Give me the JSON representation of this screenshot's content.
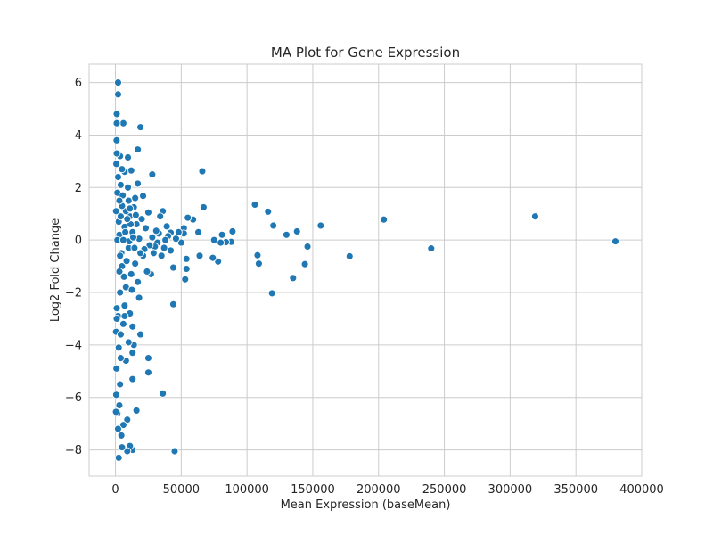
{
  "chart_data": {
    "type": "scatter",
    "title": "MA Plot for Gene Expression",
    "xlabel": "Mean Expression (baseMean)",
    "ylabel": "Log2 Fold Change",
    "xlim": [
      -20000,
      400000
    ],
    "ylim": [
      -9,
      6.7
    ],
    "xticks": [
      0,
      50000,
      100000,
      150000,
      200000,
      250000,
      300000,
      350000,
      400000
    ],
    "xtick_labels": [
      "0",
      "50000",
      "100000",
      "150000",
      "200000",
      "250000",
      "300000",
      "350000",
      "400000"
    ],
    "yticks": [
      -8,
      -6,
      -4,
      -2,
      0,
      2,
      4,
      6
    ],
    "ytick_labels": [
      "−8",
      "−6",
      "−4",
      "−2",
      "0",
      "2",
      "4",
      "6"
    ],
    "grid": true,
    "marker_color": "#1f77b4",
    "series": [
      {
        "points": [
          [
            380000,
            -0.05
          ],
          [
            319000,
            0.9
          ],
          [
            240000,
            -0.32
          ],
          [
            204000,
            0.78
          ],
          [
            178000,
            -0.62
          ],
          [
            156000,
            0.55
          ],
          [
            146000,
            -0.25
          ],
          [
            144000,
            -0.92
          ],
          [
            138000,
            0.33
          ],
          [
            135000,
            -1.45
          ],
          [
            130000,
            0.2
          ],
          [
            119000,
            -2.03
          ],
          [
            120000,
            0.55
          ],
          [
            116000,
            1.08
          ],
          [
            109000,
            -0.9
          ],
          [
            108000,
            -0.58
          ],
          [
            106000,
            1.35
          ],
          [
            89000,
            0.33
          ],
          [
            88000,
            -0.07
          ],
          [
            84000,
            -0.08
          ],
          [
            81000,
            0.2
          ],
          [
            80000,
            -0.1
          ],
          [
            78000,
            -0.82
          ],
          [
            75000,
            0.0
          ],
          [
            74000,
            -0.68
          ],
          [
            67000,
            1.25
          ],
          [
            66000,
            2.62
          ],
          [
            64000,
            -0.6
          ],
          [
            63000,
            0.3
          ],
          [
            59000,
            0.78
          ],
          [
            55000,
            0.85
          ],
          [
            54000,
            -1.1
          ],
          [
            54000,
            -0.72
          ],
          [
            53000,
            -1.5
          ],
          [
            52000,
            0.45
          ],
          [
            52000,
            0.25
          ],
          [
            50000,
            -0.1
          ],
          [
            48000,
            0.3
          ],
          [
            46000,
            0.05
          ],
          [
            45000,
            -8.05
          ],
          [
            44000,
            -2.45
          ],
          [
            44000,
            -1.05
          ],
          [
            42000,
            0.28
          ],
          [
            42000,
            -0.4
          ],
          [
            40000,
            0.15
          ],
          [
            39000,
            0.52
          ],
          [
            38000,
            0.0
          ],
          [
            37000,
            -0.3
          ],
          [
            36000,
            1.1
          ],
          [
            36000,
            -5.85
          ],
          [
            35000,
            -0.6
          ],
          [
            34000,
            0.9
          ],
          [
            33000,
            0.25
          ],
          [
            32000,
            -0.1
          ],
          [
            31000,
            0.35
          ],
          [
            30000,
            -0.25
          ],
          [
            29000,
            -0.5
          ],
          [
            28000,
            2.5
          ],
          [
            28000,
            0.1
          ],
          [
            27000,
            -1.3
          ],
          [
            26000,
            -0.2
          ],
          [
            25000,
            -4.5
          ],
          [
            25000,
            -5.05
          ],
          [
            25000,
            1.05
          ],
          [
            24000,
            -1.2
          ],
          [
            23000,
            0.45
          ],
          [
            22000,
            -0.35
          ],
          [
            21000,
            1.68
          ],
          [
            21000,
            -0.6
          ],
          [
            20000,
            0.8
          ],
          [
            19000,
            4.3
          ],
          [
            19000,
            -3.6
          ],
          [
            19000,
            -0.5
          ],
          [
            18000,
            0.05
          ],
          [
            18000,
            -2.2
          ],
          [
            17000,
            3.45
          ],
          [
            17000,
            2.15
          ],
          [
            17000,
            -1.6
          ],
          [
            16000,
            0.6
          ],
          [
            16000,
            -6.5
          ],
          [
            15000,
            1.6
          ],
          [
            15000,
            -0.9
          ],
          [
            14000,
            1.25
          ],
          [
            14000,
            -4.0
          ],
          [
            13000,
            0.3
          ],
          [
            13000,
            -4.3
          ],
          [
            13000,
            -5.3
          ],
          [
            13000,
            -3.3
          ],
          [
            13000,
            -8.0
          ],
          [
            12000,
            2.65
          ],
          [
            12000,
            -1.3
          ],
          [
            11000,
            -2.8
          ],
          [
            11000,
            0.9
          ],
          [
            11000,
            -7.85
          ],
          [
            10000,
            -0.3
          ],
          [
            10000,
            1.5
          ],
          [
            10000,
            -3.9
          ],
          [
            9500,
            3.15
          ],
          [
            9000,
            -6.85
          ],
          [
            9000,
            -8.05
          ],
          [
            8000,
            1.1
          ],
          [
            8000,
            -1.8
          ],
          [
            8000,
            -4.6
          ],
          [
            7000,
            2.6
          ],
          [
            7000,
            0.5
          ],
          [
            7000,
            -2.5
          ],
          [
            6000,
            -7.05
          ],
          [
            6000,
            4.45
          ],
          [
            6000,
            -3.2
          ],
          [
            5000,
            1.3
          ],
          [
            5000,
            -1.0
          ],
          [
            5000,
            -7.9
          ],
          [
            4500,
            -7.45
          ],
          [
            4000,
            2.1
          ],
          [
            4000,
            -4.5
          ],
          [
            3500,
            3.2
          ],
          [
            3500,
            -5.5
          ],
          [
            3000,
            0.2
          ],
          [
            3000,
            -6.3
          ],
          [
            2500,
            -8.3
          ],
          [
            2000,
            6.0
          ],
          [
            2000,
            5.55
          ],
          [
            2000,
            -7.2
          ],
          [
            1500,
            1.8
          ],
          [
            1500,
            -6.6
          ],
          [
            1000,
            4.45
          ],
          [
            1000,
            4.8
          ],
          [
            1000,
            -2.6
          ],
          [
            900,
            3.8
          ],
          [
            800,
            -4.9
          ],
          [
            700,
            2.9
          ],
          [
            600,
            -5.9
          ],
          [
            500,
            1.1
          ],
          [
            500,
            -3.5
          ],
          [
            400,
            -6.55
          ],
          [
            3000,
            -1.2
          ],
          [
            2500,
            0.7
          ],
          [
            3500,
            -2.0
          ],
          [
            4000,
            0.9
          ],
          [
            4500,
            -0.5
          ],
          [
            5500,
            1.7
          ],
          [
            6500,
            -1.4
          ],
          [
            7500,
            0.3
          ],
          [
            8500,
            -0.8
          ],
          [
            9500,
            2.0
          ],
          [
            10500,
            -0.05
          ],
          [
            11500,
            0.6
          ],
          [
            12500,
            -1.9
          ],
          [
            13500,
            0.1
          ],
          [
            14500,
            -0.3
          ],
          [
            15500,
            0.95
          ],
          [
            2000,
            2.4
          ],
          [
            2000,
            -2.9
          ],
          [
            1000,
            3.3
          ],
          [
            1000,
            -3.0
          ],
          [
            1500,
            0.0
          ],
          [
            3000,
            1.5
          ],
          [
            3500,
            -0.6
          ],
          [
            6000,
            0.0
          ],
          [
            7000,
            -2.9
          ],
          [
            9000,
            0.8
          ],
          [
            11000,
            1.2
          ],
          [
            4000,
            -3.6
          ],
          [
            5000,
            2.7
          ],
          [
            2500,
            -4.1
          ]
        ]
      }
    ]
  }
}
